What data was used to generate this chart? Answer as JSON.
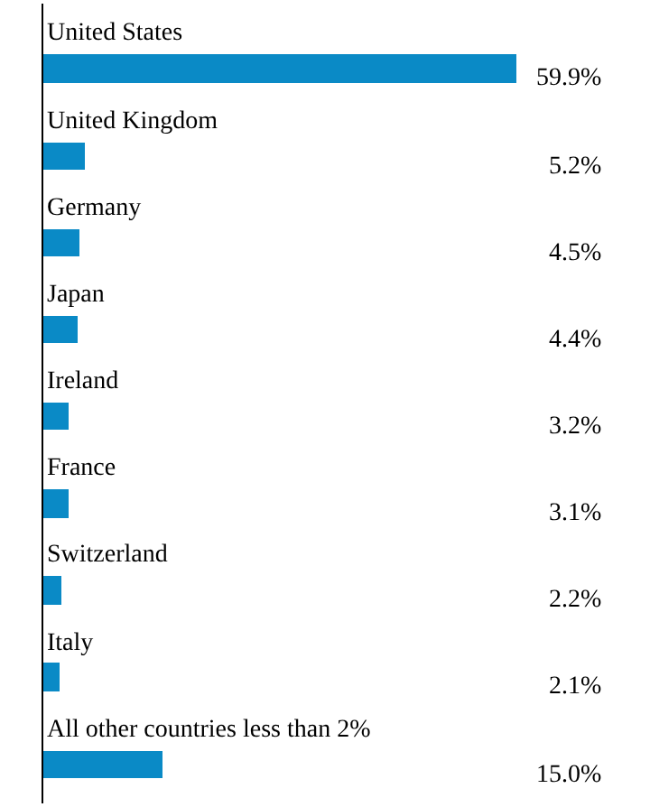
{
  "chart_data": {
    "type": "bar",
    "orientation": "horizontal",
    "categories": [
      "United States",
      "United Kingdom",
      "Germany",
      "Japan",
      "Ireland",
      "France",
      "Switzerland",
      "Italy",
      "All other countries less than 2%"
    ],
    "values": [
      59.9,
      5.2,
      4.5,
      4.4,
      3.2,
      3.1,
      2.2,
      2.1,
      15.0
    ],
    "value_labels": [
      "59.9%",
      "5.2%",
      "4.5%",
      "4.4%",
      "3.2%",
      "3.1%",
      "2.2%",
      "2.1%",
      "15.0%"
    ],
    "color": "#0a8ac6",
    "legend": false,
    "tick_labels": false
  }
}
